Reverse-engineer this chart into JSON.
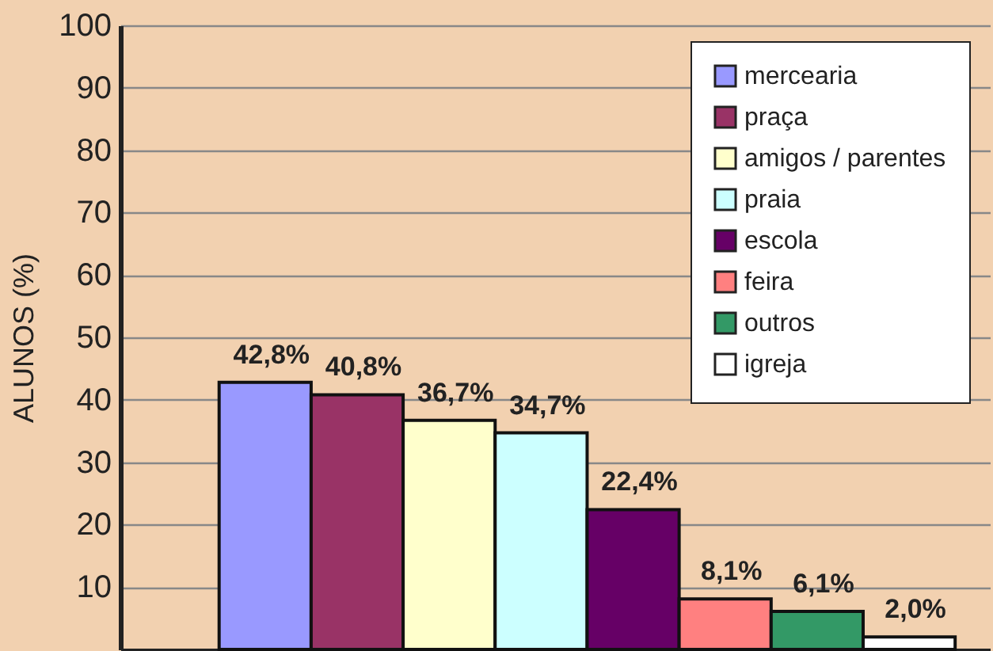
{
  "chart_data": {
    "type": "bar",
    "ylabel": "ALUNOS (%)",
    "categories": [
      null
    ],
    "series": [
      {
        "name": "mercearia",
        "color": "#9999ff",
        "values": [
          42.8
        ],
        "value_labels": [
          "42,8%"
        ]
      },
      {
        "name": "praça",
        "color": "#993366",
        "values": [
          40.8
        ],
        "value_labels": [
          "40,8%"
        ]
      },
      {
        "name": "amigos / parentes",
        "color": "#ffffcc",
        "values": [
          36.7
        ],
        "value_labels": [
          "36,7%"
        ]
      },
      {
        "name": "praia",
        "color": "#ccffff",
        "values": [
          34.7
        ],
        "value_labels": [
          "34,7%"
        ]
      },
      {
        "name": "escola",
        "color": "#660066",
        "values": [
          22.4
        ],
        "value_labels": [
          "22,4%"
        ]
      },
      {
        "name": "feira",
        "color": "#ff8080",
        "values": [
          8.1
        ],
        "value_labels": [
          "8,1%"
        ]
      },
      {
        "name": "outros",
        "color": "#339966",
        "values": [
          6.1
        ],
        "value_labels": [
          "6,1%"
        ]
      },
      {
        "name": "igreja",
        "color": "#ffffff",
        "values": [
          2.0
        ],
        "value_labels": [
          "2,0%"
        ]
      }
    ],
    "ylim": [
      0,
      100
    ],
    "yticks": [
      10,
      20,
      30,
      40,
      50,
      60,
      70,
      80,
      90,
      100
    ],
    "grid": "y",
    "legend": "top right",
    "tick_labels": "y"
  }
}
